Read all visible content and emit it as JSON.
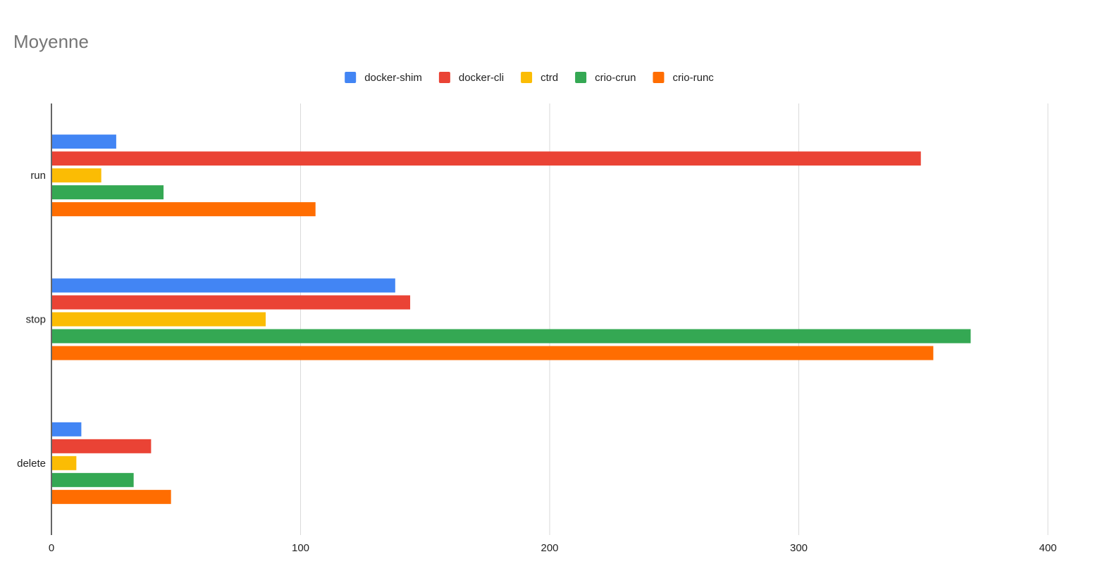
{
  "chart_data": {
    "type": "bar",
    "orientation": "horizontal",
    "title": "Moyenne",
    "categories": [
      "run",
      "stop",
      "delete"
    ],
    "series": [
      {
        "name": "docker-shim",
        "color": "#4285F4",
        "values": [
          26,
          138,
          12
        ]
      },
      {
        "name": "docker-cli",
        "color": "#EA4335",
        "values": [
          349,
          144,
          40
        ]
      },
      {
        "name": "ctrd",
        "color": "#FBBC04",
        "values": [
          20,
          86,
          10
        ]
      },
      {
        "name": "crio-crun",
        "color": "#34A853",
        "values": [
          45,
          369,
          33
        ]
      },
      {
        "name": "crio-runc",
        "color": "#FF6D01",
        "values": [
          106,
          354,
          48
        ]
      }
    ],
    "xlim": [
      0,
      400
    ],
    "x_ticks": [
      0,
      100,
      200,
      300,
      400
    ],
    "legend_position": "top",
    "grid": true,
    "xlabel": "",
    "ylabel": ""
  }
}
